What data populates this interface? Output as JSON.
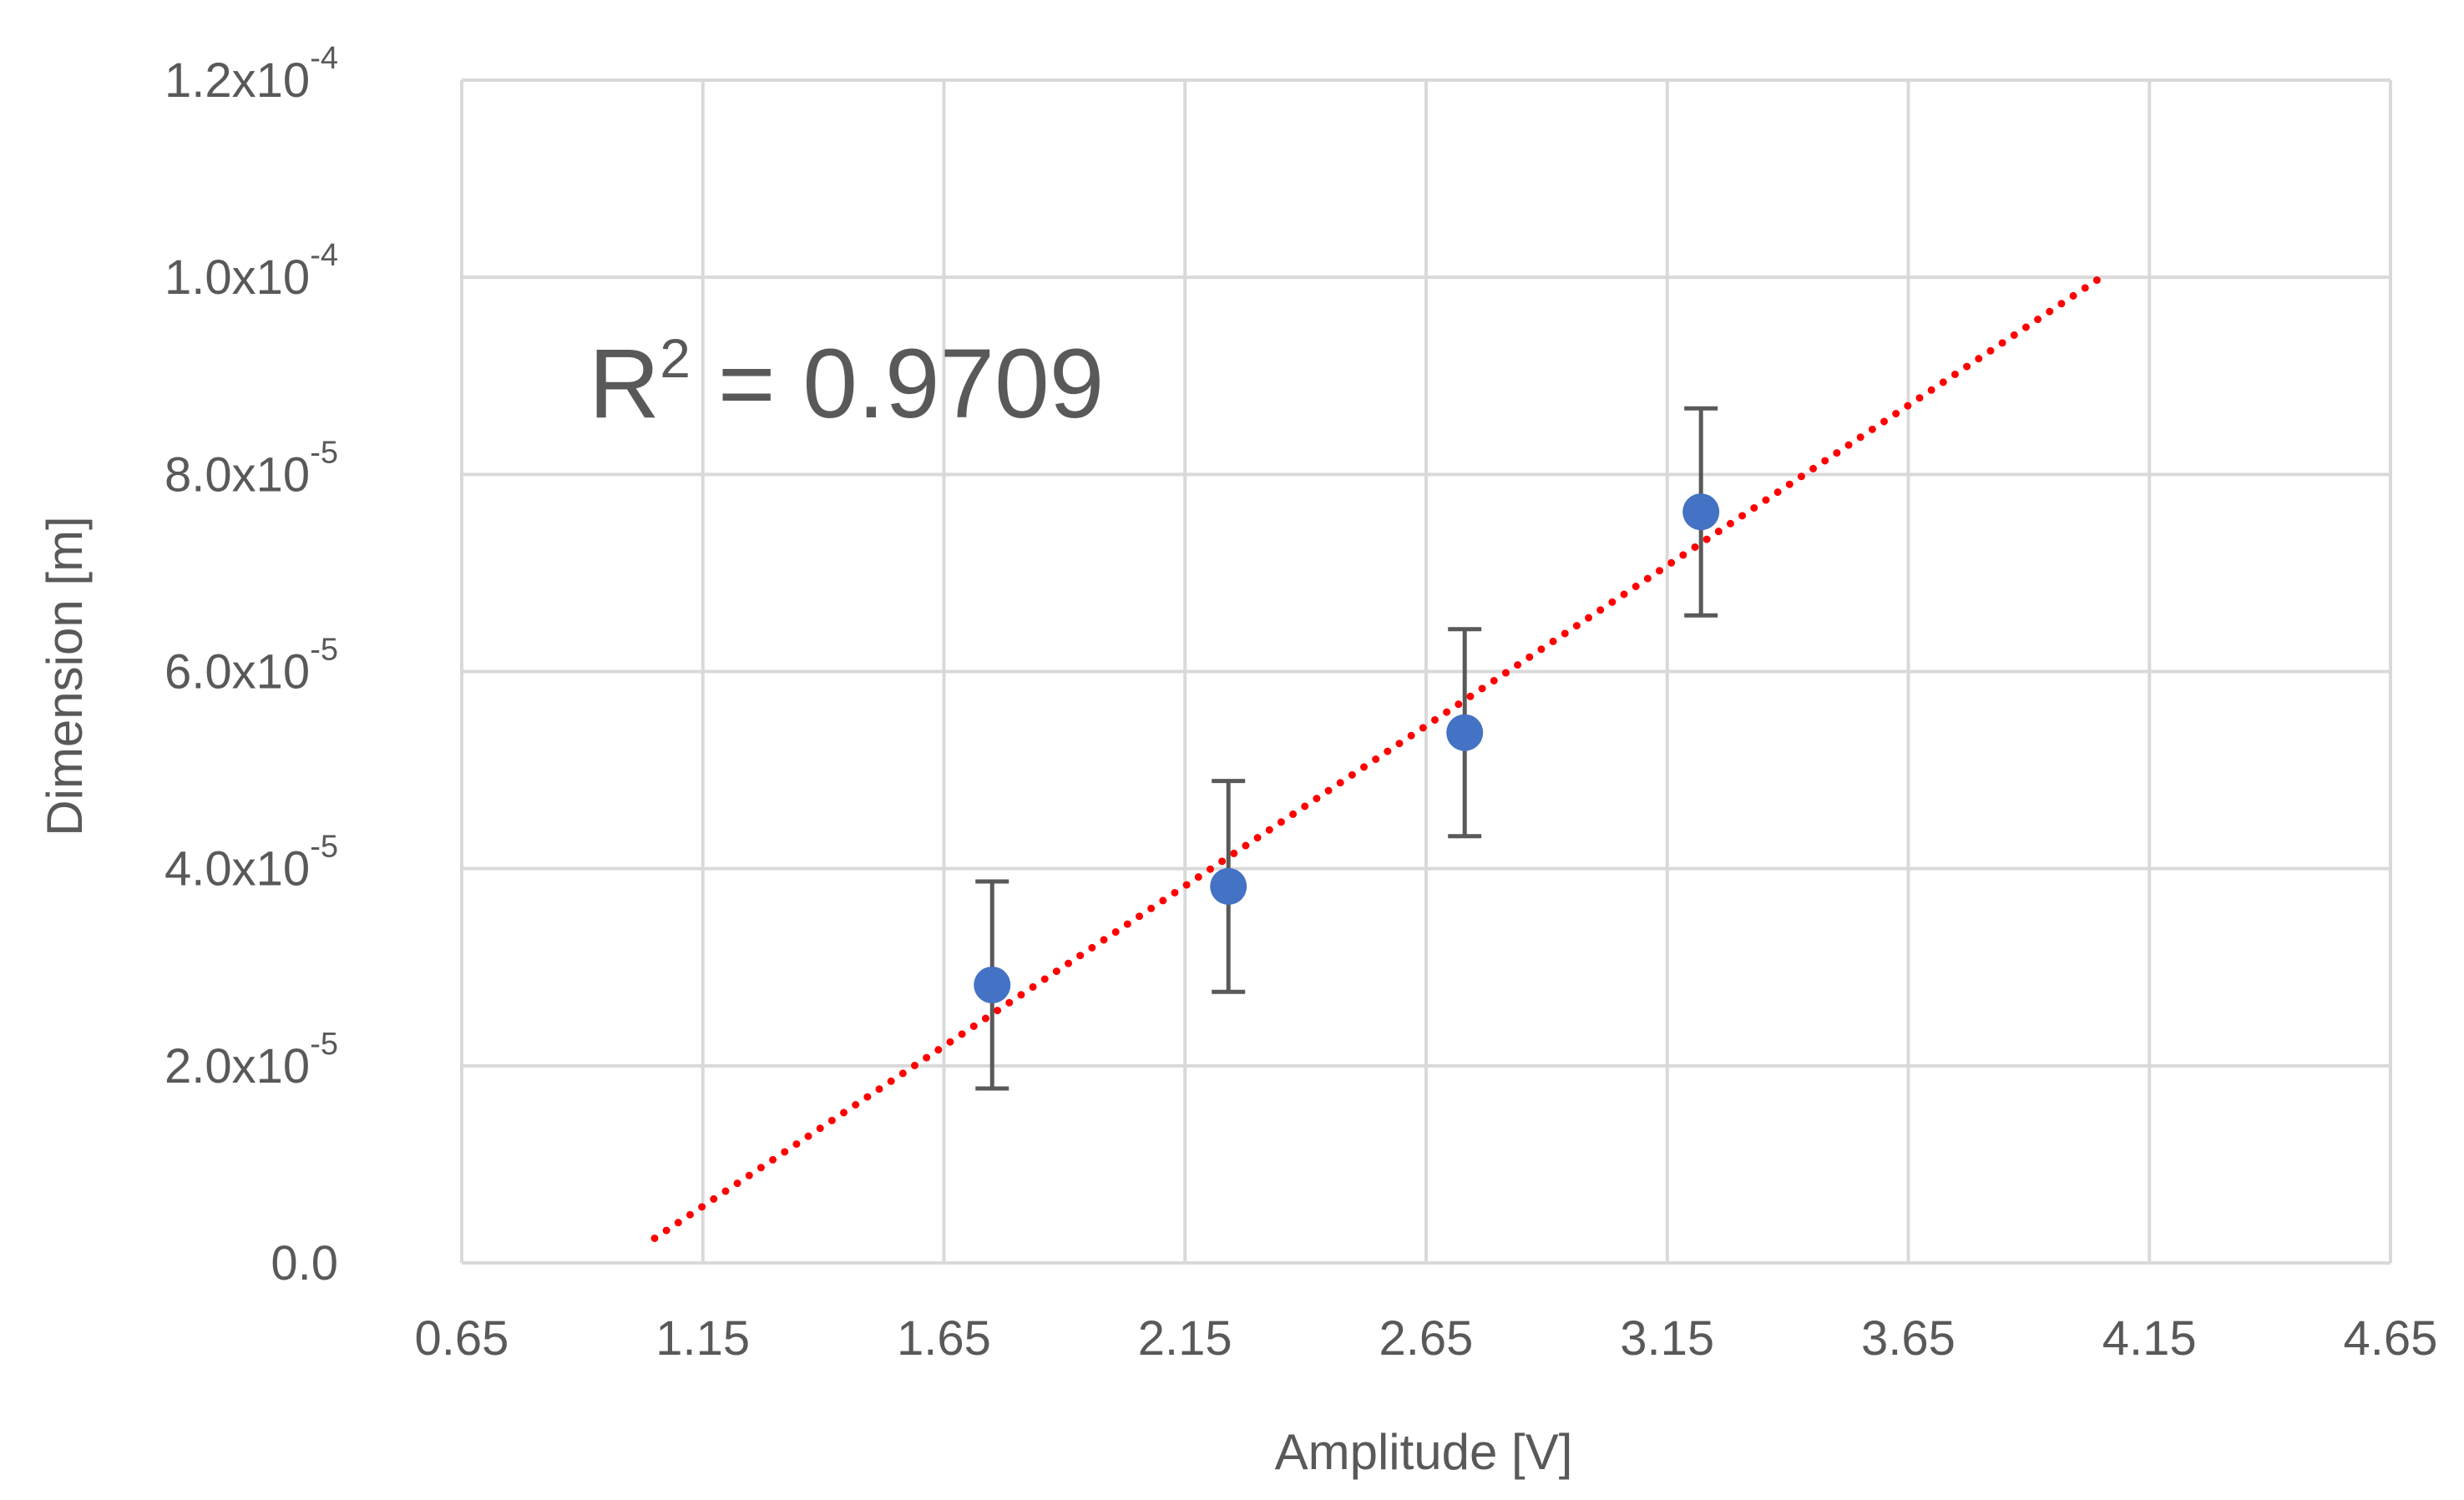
{
  "chart_data": {
    "type": "scatter",
    "xlabel": "Amplitude [V]",
    "ylabel": "Dimension [m]",
    "xlim": [
      0.65,
      4.65
    ],
    "ylim": [
      0,
      0.00012
    ],
    "x_ticks": [
      {
        "value": 0.65,
        "label": "0.65"
      },
      {
        "value": 1.15,
        "label": "1.15"
      },
      {
        "value": 1.65,
        "label": "1.65"
      },
      {
        "value": 2.15,
        "label": "2.15"
      },
      {
        "value": 2.65,
        "label": "2.65"
      },
      {
        "value": 3.15,
        "label": "3.15"
      },
      {
        "value": 3.65,
        "label": "3.65"
      },
      {
        "value": 4.15,
        "label": "4.15"
      },
      {
        "value": 4.65,
        "label": "4.65"
      }
    ],
    "y_ticks": [
      {
        "value": 0,
        "mantissa": "0.0",
        "exponent": ""
      },
      {
        "value": 2e-05,
        "mantissa": "2.0x10",
        "exponent": "-5"
      },
      {
        "value": 4e-05,
        "mantissa": "4.0x10",
        "exponent": "-5"
      },
      {
        "value": 6e-05,
        "mantissa": "6.0x10",
        "exponent": "-5"
      },
      {
        "value": 8e-05,
        "mantissa": "8.0x10",
        "exponent": "-5"
      },
      {
        "value": 0.0001,
        "mantissa": "1.0x10",
        "exponent": "-4"
      },
      {
        "value": 0.00012,
        "mantissa": "1.2x10",
        "exponent": "-4"
      }
    ],
    "grid": true,
    "series": [
      {
        "color": "#4472C4",
        "points": [
          {
            "x": 1.75,
            "y": 2.82e-05,
            "y_err": 1.05e-05
          },
          {
            "x": 2.24,
            "y": 3.82e-05,
            "y_err": 1.07e-05
          },
          {
            "x": 2.73,
            "y": 5.38e-05,
            "y_err": 1.05e-05
          },
          {
            "x": 3.22,
            "y": 7.62e-05,
            "y_err": 1.05e-05
          }
        ]
      }
    ],
    "trendline": {
      "style": "dotted",
      "color": "#FF0000",
      "x_start": 1.05,
      "y_start": 2.5e-06,
      "x_end": 4.05,
      "y_end": 0.0001
    },
    "annotation": {
      "text_before": "R",
      "superscript": "2",
      "text_after": " = 0.9709"
    },
    "colors": {
      "grid": "#D9D9D9",
      "text": "#595959",
      "error_bar": "#595959"
    }
  }
}
